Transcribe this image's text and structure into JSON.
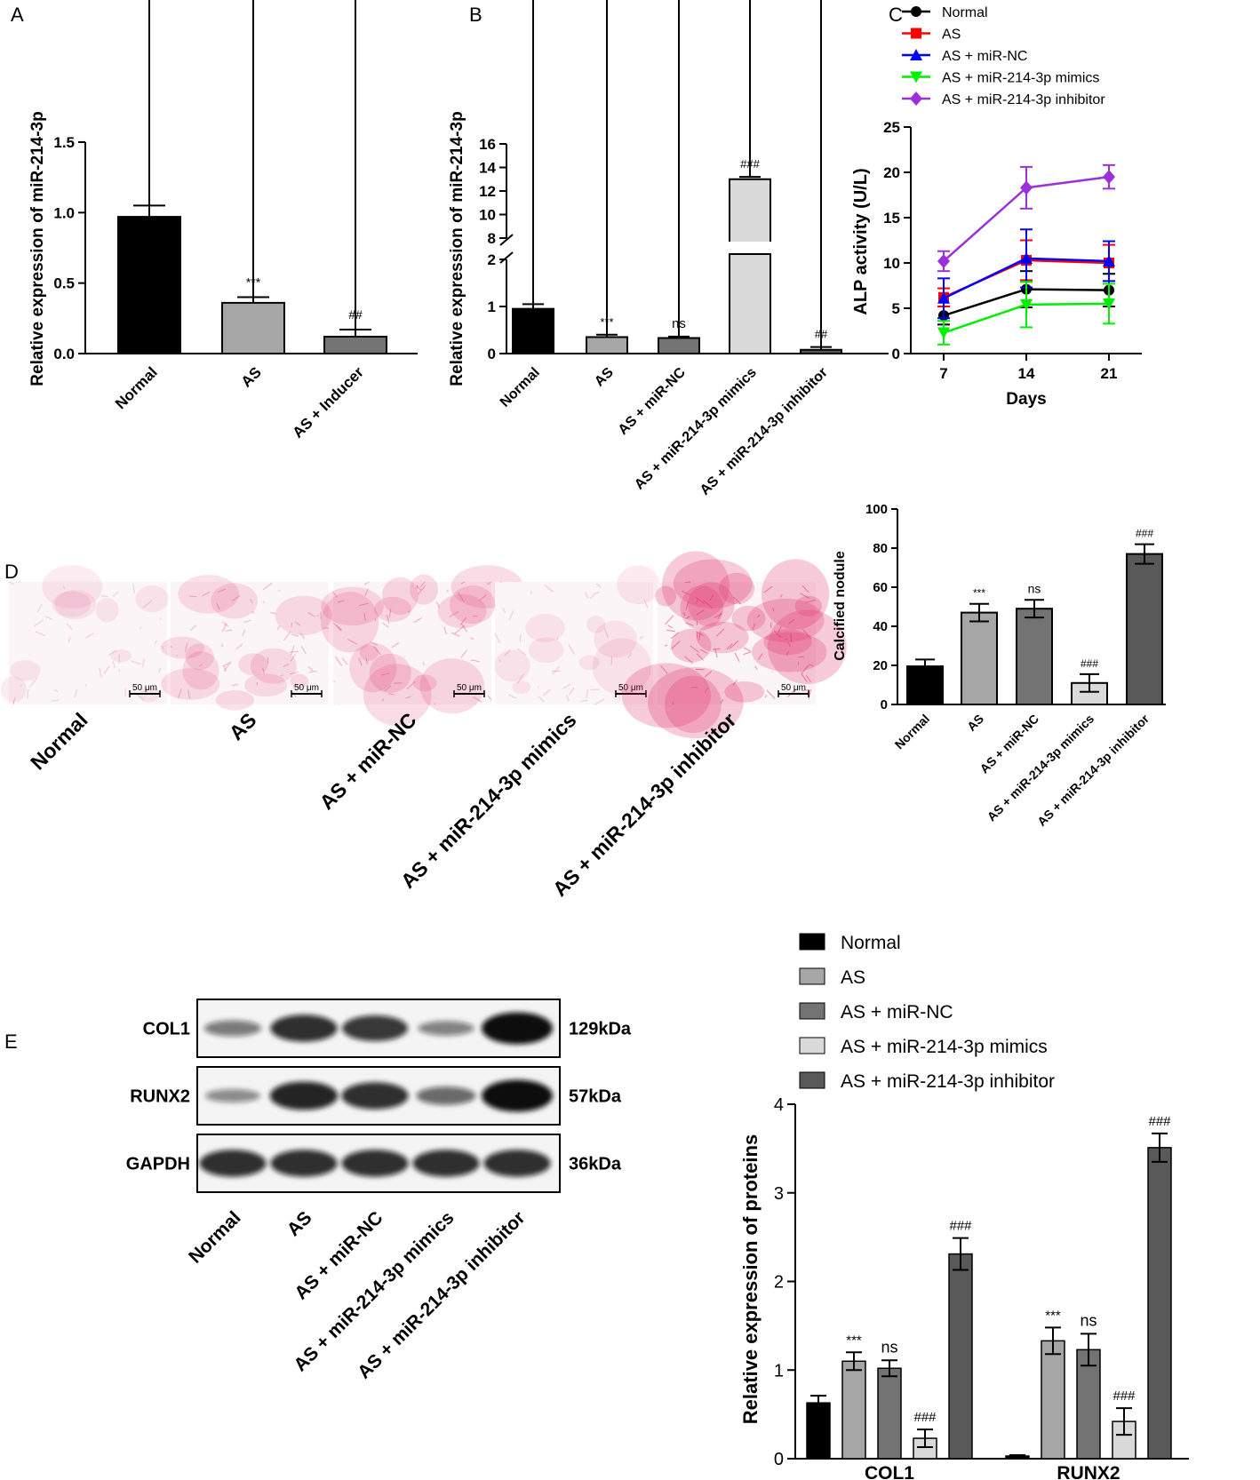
{
  "panel_letters": {
    "A": "A",
    "B": "B",
    "C": "C",
    "D": "D",
    "E": "E"
  },
  "chart_data": [
    {
      "id": "A",
      "type": "bar",
      "ylabel": "Relative expression of miR-214-3p",
      "categories": [
        "Normal",
        "AS",
        "AS + Inducer"
      ],
      "values": [
        0.97,
        0.36,
        0.12
      ],
      "errors": [
        0.08,
        0.04,
        0.05
      ],
      "colors": [
        "#000000",
        "#a6a6a6",
        "#737373"
      ],
      "annotations": [
        "",
        "***",
        "##"
      ],
      "ylim": [
        0,
        1.5
      ],
      "yticks": [
        "0.0",
        "0.5",
        "1.0",
        "1.5"
      ]
    },
    {
      "id": "B",
      "type": "bar",
      "axis_break": [
        2,
        8
      ],
      "ylabel": "Relative expression of miR-214-3p",
      "categories": [
        "Normal",
        "AS",
        "AS + miR-NC",
        "AS + miR-214-3p mimics",
        "AS + miR-214-3p inhibitor"
      ],
      "values": [
        0.95,
        0.35,
        0.33,
        13.0,
        0.08
      ],
      "errors": [
        0.1,
        0.05,
        0.03,
        0.2,
        0.06
      ],
      "colors": [
        "#000000",
        "#a6a6a6",
        "#737373",
        "#d9d9d9",
        "#595959"
      ],
      "annotations": [
        "",
        "***",
        "ns",
        "###",
        "##"
      ],
      "yticks_low": [
        "0",
        "1",
        "2"
      ],
      "yticks_high": [
        "8",
        "10",
        "12",
        "14",
        "16"
      ]
    },
    {
      "id": "C",
      "type": "line",
      "xlabel": "Days",
      "ylabel": "ALP activity (U/L)",
      "x": [
        "7",
        "14",
        "21"
      ],
      "ylim": [
        0,
        25
      ],
      "yticks": [
        "0",
        "5",
        "10",
        "15",
        "20",
        "25"
      ],
      "series": [
        {
          "name": "Normal",
          "color": "#000000",
          "marker": "circle",
          "values": [
            4.2,
            7.1,
            7.0
          ],
          "errors": [
            1.0,
            2.0,
            1.8
          ]
        },
        {
          "name": "AS",
          "color": "#ff0000",
          "marker": "square",
          "values": [
            6.2,
            10.3,
            10.0
          ],
          "errors": [
            1.0,
            2.2,
            2.0
          ]
        },
        {
          "name": "AS + miR-NC",
          "color": "#0000ff",
          "marker": "triangle-up",
          "values": [
            6.1,
            10.5,
            10.2
          ],
          "errors": [
            2.2,
            3.2,
            2.2
          ]
        },
        {
          "name": "AS + miR-214-3p mimics",
          "color": "#00ee00",
          "marker": "triangle-down",
          "values": [
            2.3,
            5.4,
            5.5
          ],
          "errors": [
            1.3,
            2.5,
            2.2
          ]
        },
        {
          "name": "AS + miR-214-3p inhibitor",
          "color": "#9b30d9",
          "marker": "diamond",
          "values": [
            10.2,
            18.3,
            19.5
          ],
          "errors": [
            1.1,
            2.3,
            1.3
          ]
        }
      ]
    },
    {
      "id": "D",
      "type": "bar",
      "ylabel": "Calcified nodule",
      "categories": [
        "Normal",
        "AS",
        "AS + miR-NC",
        "AS + miR-214-3p mimics",
        "AS + miR-214-3p inhibitor"
      ],
      "values": [
        19.5,
        47,
        49,
        11,
        77
      ],
      "errors": [
        3.5,
        4.5,
        4.5,
        4.5,
        5
      ],
      "colors": [
        "#000000",
        "#a6a6a6",
        "#737373",
        "#d9d9d9",
        "#595959"
      ],
      "annotations": [
        "",
        "***",
        "ns",
        "###",
        "###"
      ],
      "ylim": [
        0,
        100
      ],
      "yticks": [
        "0",
        "20",
        "40",
        "60",
        "80",
        "100"
      ]
    },
    {
      "id": "E",
      "type": "bar",
      "ylabel": "Relative expression of proteins",
      "groups": [
        "COL1",
        "RUNX2"
      ],
      "ylim": [
        0,
        4
      ],
      "yticks": [
        "0",
        "1",
        "2",
        "3",
        "4"
      ],
      "series": [
        {
          "name": "Normal",
          "color": "#000000",
          "values": [
            0.63,
            0.03
          ],
          "errors": [
            0.08,
            0.01
          ],
          "annotations": [
            "",
            ""
          ]
        },
        {
          "name": "AS",
          "color": "#a6a6a6",
          "values": [
            1.1,
            1.33
          ],
          "errors": [
            0.1,
            0.15
          ],
          "annotations": [
            "***",
            "***"
          ]
        },
        {
          "name": "AS + miR-NC",
          "color": "#737373",
          "values": [
            1.02,
            1.23
          ],
          "errors": [
            0.09,
            0.18
          ],
          "annotations": [
            "ns",
            "ns"
          ]
        },
        {
          "name": "AS + miR-214-3p mimics",
          "color": "#d9d9d9",
          "values": [
            0.23,
            0.42
          ],
          "errors": [
            0.1,
            0.15
          ],
          "annotations": [
            "###",
            "###"
          ]
        },
        {
          "name": "AS + miR-214-3p inhibitor",
          "color": "#595959",
          "values": [
            2.31,
            3.51
          ],
          "errors": [
            0.18,
            0.16
          ],
          "annotations": [
            "###",
            "###"
          ]
        }
      ]
    }
  ],
  "micrographs": {
    "labels": [
      "Normal",
      "AS",
      "AS + miR-NC",
      "AS + miR-214-3p mimics",
      "AS + miR-214-3p inhibitor"
    ],
    "scale_bar": "50 μm",
    "stain_intensity": [
      0.2,
      0.45,
      0.55,
      0.22,
      0.9
    ],
    "stain_color": "#e0306a"
  },
  "western_blot": {
    "rows": [
      {
        "protein": "COL1",
        "size": "129kDa",
        "intensity": [
          0.35,
          0.8,
          0.75,
          0.3,
          1.0
        ]
      },
      {
        "protein": "RUNX2",
        "size": "57kDa",
        "intensity": [
          0.25,
          0.85,
          0.8,
          0.45,
          1.0
        ]
      },
      {
        "protein": "GAPDH",
        "size": "36kDa",
        "intensity": [
          0.8,
          0.8,
          0.8,
          0.8,
          0.8
        ]
      }
    ],
    "lanes": [
      "Normal",
      "AS",
      "AS + miR-NC",
      "AS + miR-214-3p mimics",
      "AS + miR-214-3p inhibitor"
    ]
  }
}
